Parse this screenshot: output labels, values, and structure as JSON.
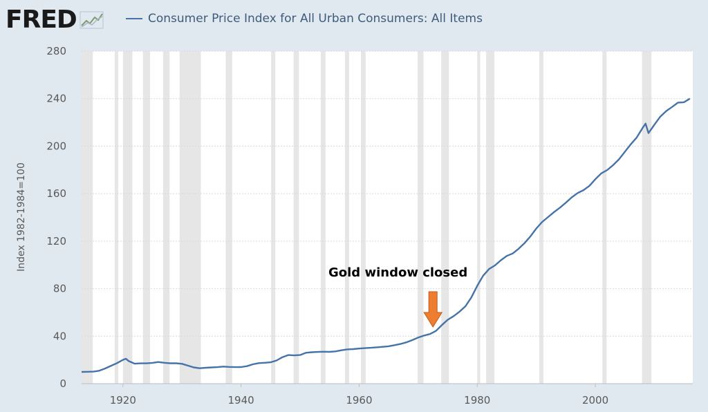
{
  "brand": {
    "logo_text": "FRED",
    "logo_mark": "trend-line-icon"
  },
  "legend": {
    "label": "Consumer Price Index for All Urban Consumers: All Items",
    "color": "#4572a7"
  },
  "annotation": {
    "text": "Gold window closed",
    "arrow_color": "#ed7d31",
    "arrow_year": 1972.5
  },
  "chart_data": {
    "type": "line",
    "title": "",
    "xlabel": "",
    "ylabel": "Index 1982-1984=100",
    "xlim": [
      1913,
      2016.5
    ],
    "ylim": [
      0,
      280
    ],
    "xticks": [
      1920,
      1940,
      1960,
      1980,
      2000
    ],
    "yticks": [
      0,
      40,
      80,
      120,
      160,
      200,
      240,
      280
    ],
    "grid": {
      "horizontal": true,
      "vertical": false
    },
    "legend_position": "top",
    "recession_shading_color": "#e6e6e6",
    "recessions": [
      [
        1913.0,
        1914.9
      ],
      [
        1918.6,
        1919.2
      ],
      [
        1920.0,
        1921.6
      ],
      [
        1923.4,
        1924.6
      ],
      [
        1926.8,
        1927.9
      ],
      [
        1929.6,
        1933.2
      ],
      [
        1937.4,
        1938.5
      ],
      [
        1945.1,
        1945.8
      ],
      [
        1948.9,
        1949.8
      ],
      [
        1953.5,
        1954.3
      ],
      [
        1957.6,
        1958.3
      ],
      [
        1960.3,
        1961.1
      ],
      [
        1969.9,
        1970.9
      ],
      [
        1973.9,
        1975.2
      ],
      [
        1980.0,
        1980.5
      ],
      [
        1981.5,
        1982.9
      ],
      [
        1990.5,
        1991.2
      ],
      [
        2001.2,
        2001.9
      ],
      [
        2007.9,
        2009.5
      ]
    ],
    "series": [
      {
        "color": "#4572a7",
        "points": [
          [
            1913,
            9.9
          ],
          [
            1915,
            10.1
          ],
          [
            1916,
            10.9
          ],
          [
            1917,
            12.8
          ],
          [
            1918,
            15.1
          ],
          [
            1919,
            17.3
          ],
          [
            1920,
            20.0
          ],
          [
            1920.5,
            21.0
          ],
          [
            1921,
            19.0
          ],
          [
            1922,
            16.8
          ],
          [
            1923,
            17.1
          ],
          [
            1924,
            17.1
          ],
          [
            1925,
            17.5
          ],
          [
            1926,
            18.2
          ],
          [
            1927,
            17.6
          ],
          [
            1928,
            17.2
          ],
          [
            1929,
            17.2
          ],
          [
            1930,
            16.7
          ],
          [
            1931,
            15.2
          ],
          [
            1932,
            13.7
          ],
          [
            1933,
            13.0
          ],
          [
            1934,
            13.4
          ],
          [
            1935,
            13.7
          ],
          [
            1936,
            13.9
          ],
          [
            1937,
            14.4
          ],
          [
            1938,
            14.1
          ],
          [
            1939,
            13.9
          ],
          [
            1940,
            14.0
          ],
          [
            1941,
            14.7
          ],
          [
            1942,
            16.3
          ],
          [
            1943,
            17.3
          ],
          [
            1944,
            17.6
          ],
          [
            1945,
            18.0
          ],
          [
            1946,
            19.5
          ],
          [
            1947,
            22.3
          ],
          [
            1948,
            24.1
          ],
          [
            1949,
            23.8
          ],
          [
            1950,
            24.1
          ],
          [
            1951,
            26.0
          ],
          [
            1952,
            26.5
          ],
          [
            1953,
            26.7
          ],
          [
            1954,
            26.9
          ],
          [
            1955,
            26.8
          ],
          [
            1956,
            27.2
          ],
          [
            1957,
            28.1
          ],
          [
            1958,
            28.9
          ],
          [
            1959,
            29.1
          ],
          [
            1960,
            29.6
          ],
          [
            1961,
            29.9
          ],
          [
            1962,
            30.2
          ],
          [
            1963,
            30.6
          ],
          [
            1964,
            31.0
          ],
          [
            1965,
            31.5
          ],
          [
            1966,
            32.4
          ],
          [
            1967,
            33.4
          ],
          [
            1968,
            34.8
          ],
          [
            1969,
            36.7
          ],
          [
            1970,
            38.8
          ],
          [
            1971,
            40.5
          ],
          [
            1972,
            41.8
          ],
          [
            1973,
            44.4
          ],
          [
            1974,
            49.3
          ],
          [
            1975,
            53.8
          ],
          [
            1976,
            56.9
          ],
          [
            1977,
            60.6
          ],
          [
            1978,
            65.2
          ],
          [
            1979,
            72.6
          ],
          [
            1980,
            82.4
          ],
          [
            1981,
            90.9
          ],
          [
            1982,
            96.5
          ],
          [
            1983,
            99.6
          ],
          [
            1984,
            103.9
          ],
          [
            1985,
            107.6
          ],
          [
            1986,
            109.6
          ],
          [
            1987,
            113.6
          ],
          [
            1988,
            118.3
          ],
          [
            1989,
            124.0
          ],
          [
            1990,
            130.7
          ],
          [
            1991,
            136.2
          ],
          [
            1992,
            140.3
          ],
          [
            1993,
            144.5
          ],
          [
            1994,
            148.2
          ],
          [
            1995,
            152.4
          ],
          [
            1996,
            156.9
          ],
          [
            1997,
            160.5
          ],
          [
            1998,
            163.0
          ],
          [
            1999,
            166.6
          ],
          [
            2000,
            172.2
          ],
          [
            2001,
            177.1
          ],
          [
            2002,
            179.9
          ],
          [
            2003,
            184.0
          ],
          [
            2004,
            188.9
          ],
          [
            2005,
            195.3
          ],
          [
            2006,
            201.6
          ],
          [
            2007,
            207.3
          ],
          [
            2008,
            215.3
          ],
          [
            2008.5,
            219.0
          ],
          [
            2009,
            211.0
          ],
          [
            2009.5,
            214.5
          ],
          [
            2010,
            218.1
          ],
          [
            2011,
            224.9
          ],
          [
            2012,
            229.6
          ],
          [
            2013,
            233.0
          ],
          [
            2014,
            236.7
          ],
          [
            2015,
            237.0
          ],
          [
            2015.5,
            238.5
          ],
          [
            2016,
            240.0
          ]
        ]
      }
    ]
  }
}
